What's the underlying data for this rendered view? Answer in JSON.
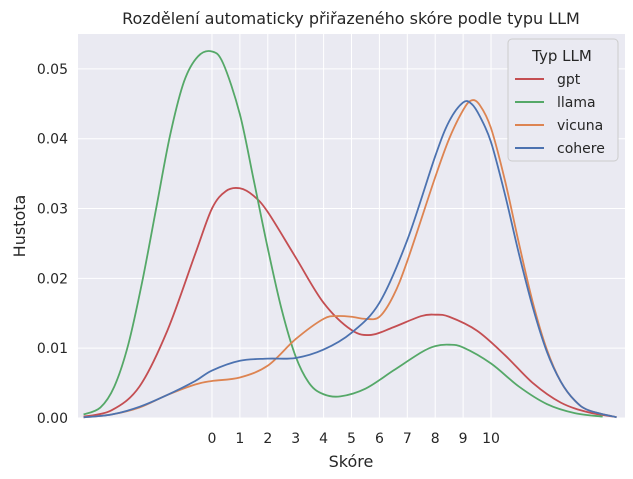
{
  "chart_data": {
    "type": "line",
    "title": "Rozdělení automaticky přiřazeného skóre podle typu LLM",
    "xlabel": "Skóre",
    "ylabel": "Hustota",
    "xlim": [
      -4.8,
      14.8
    ],
    "ylim": [
      0,
      0.055
    ],
    "xticks": [
      0,
      1,
      2,
      3,
      4,
      5,
      6,
      7,
      8,
      9,
      10
    ],
    "yticks": [
      0.0,
      0.01,
      0.02,
      0.03,
      0.04,
      0.05
    ],
    "ytick_labels": [
      "0.00",
      "0.01",
      "0.02",
      "0.03",
      "0.04",
      "0.05"
    ],
    "grid": true,
    "legend": {
      "title": "Typ LLM",
      "placement": "top-right"
    },
    "series": [
      {
        "name": "gpt",
        "color": "#c44e52",
        "points": [
          [
            -4.6,
            0.0002
          ],
          [
            -3.6,
            0.0011
          ],
          [
            -2.6,
            0.0045
          ],
          [
            -1.6,
            0.0125
          ],
          [
            -0.6,
            0.0235
          ],
          [
            0,
            0.03
          ],
          [
            0.5,
            0.0325
          ],
          [
            1,
            0.0329
          ],
          [
            1.5,
            0.0318
          ],
          [
            2,
            0.0295
          ],
          [
            3,
            0.023
          ],
          [
            4,
            0.0165
          ],
          [
            5,
            0.0126
          ],
          [
            5.7,
            0.0119
          ],
          [
            6.5,
            0.013
          ],
          [
            7.5,
            0.0146
          ],
          [
            8,
            0.0148
          ],
          [
            8.5,
            0.0145
          ],
          [
            9.5,
            0.0125
          ],
          [
            10.5,
            0.009
          ],
          [
            11.5,
            0.005
          ],
          [
            12.5,
            0.0022
          ],
          [
            13.5,
            0.0008
          ],
          [
            14.4,
            0.0002
          ]
        ]
      },
      {
        "name": "llama",
        "color": "#55a868",
        "points": [
          [
            -4.6,
            0.0005
          ],
          [
            -4,
            0.0015
          ],
          [
            -3.5,
            0.0045
          ],
          [
            -3,
            0.0105
          ],
          [
            -2.5,
            0.0195
          ],
          [
            -2,
            0.03
          ],
          [
            -1.5,
            0.0405
          ],
          [
            -1,
            0.0482
          ],
          [
            -0.5,
            0.0518
          ],
          [
            0,
            0.0525
          ],
          [
            0.4,
            0.0508
          ],
          [
            1,
            0.0435
          ],
          [
            1.5,
            0.034
          ],
          [
            2,
            0.0243
          ],
          [
            2.5,
            0.0155
          ],
          [
            3,
            0.0088
          ],
          [
            3.5,
            0.0049
          ],
          [
            4,
            0.0034
          ],
          [
            4.6,
            0.0031
          ],
          [
            5.5,
            0.0042
          ],
          [
            6.5,
            0.0068
          ],
          [
            7.5,
            0.0094
          ],
          [
            8,
            0.0103
          ],
          [
            8.5,
            0.0105
          ],
          [
            9,
            0.0101
          ],
          [
            10,
            0.0078
          ],
          [
            11,
            0.0045
          ],
          [
            12,
            0.002
          ],
          [
            13,
            0.0007
          ],
          [
            14,
            0.0002
          ]
        ]
      },
      {
        "name": "vicuna",
        "color": "#dd8452",
        "points": [
          [
            -4.6,
            0.0001
          ],
          [
            -3.6,
            0.0005
          ],
          [
            -2.6,
            0.0015
          ],
          [
            -1.6,
            0.0033
          ],
          [
            -0.6,
            0.0048
          ],
          [
            0,
            0.0053
          ],
          [
            1,
            0.0058
          ],
          [
            2,
            0.0075
          ],
          [
            3,
            0.0113
          ],
          [
            4,
            0.0142
          ],
          [
            4.5,
            0.0146
          ],
          [
            5,
            0.0145
          ],
          [
            5.5,
            0.0142
          ],
          [
            6,
            0.0145
          ],
          [
            6.5,
            0.0175
          ],
          [
            7,
            0.0225
          ],
          [
            8,
            0.0345
          ],
          [
            8.5,
            0.04
          ],
          [
            9,
            0.0441
          ],
          [
            9.3,
            0.0455
          ],
          [
            9.6,
            0.0448
          ],
          [
            10,
            0.0415
          ],
          [
            10.5,
            0.034
          ],
          [
            11,
            0.025
          ],
          [
            11.5,
            0.0165
          ],
          [
            12,
            0.0098
          ],
          [
            12.5,
            0.0052
          ],
          [
            13,
            0.0025
          ],
          [
            13.5,
            0.0011
          ],
          [
            14.5,
            0.0001
          ]
        ]
      },
      {
        "name": "cohere",
        "color": "#4c72b0",
        "points": [
          [
            -4.6,
            0.0001
          ],
          [
            -3.6,
            0.0005
          ],
          [
            -2.6,
            0.0016
          ],
          [
            -1.6,
            0.0033
          ],
          [
            -0.6,
            0.0053
          ],
          [
            0,
            0.0068
          ],
          [
            1,
            0.0082
          ],
          [
            2,
            0.0085
          ],
          [
            3,
            0.0086
          ],
          [
            4,
            0.0098
          ],
          [
            5,
            0.0122
          ],
          [
            6,
            0.0165
          ],
          [
            7,
            0.0255
          ],
          [
            8,
            0.0375
          ],
          [
            8.5,
            0.0425
          ],
          [
            9,
            0.0452
          ],
          [
            9.3,
            0.045
          ],
          [
            9.6,
            0.0432
          ],
          [
            10,
            0.0395
          ],
          [
            10.5,
            0.032
          ],
          [
            11,
            0.0235
          ],
          [
            11.5,
            0.0158
          ],
          [
            12,
            0.0095
          ],
          [
            12.5,
            0.0052
          ],
          [
            13,
            0.0025
          ],
          [
            13.5,
            0.0011
          ],
          [
            14.5,
            0.0001
          ]
        ]
      }
    ]
  }
}
